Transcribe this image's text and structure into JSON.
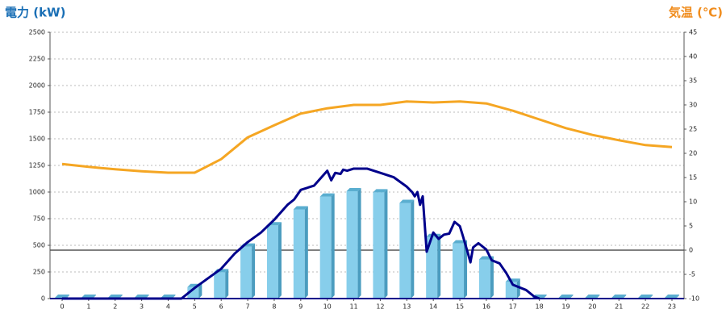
{
  "chart_data": {
    "type": "bar",
    "y_label": "電力 (kW)",
    "y2_label": "気温 (℃)",
    "categories": [
      "0",
      "1",
      "2",
      "3",
      "4",
      "5",
      "6",
      "7",
      "8",
      "9",
      "10",
      "11",
      "12",
      "13",
      "14",
      "15",
      "16",
      "17",
      "18",
      "19",
      "20",
      "21",
      "22",
      "23"
    ],
    "series": [
      {
        "type": "bar",
        "color": "#87ceeb",
        "values": [
          0,
          0,
          0,
          0,
          0,
          100,
          240,
          480,
          680,
          830,
          950,
          1000,
          990,
          890,
          570,
          510,
          360,
          150,
          0,
          0,
          0,
          0,
          0,
          0
        ]
      },
      {
        "type": "line",
        "color": "#00008b",
        "x": [
          0,
          4.5,
          5,
          5.5,
          6,
          6.5,
          7,
          7.5,
          8,
          8.5,
          8.75,
          9,
          9.5,
          9.75,
          10,
          10.15,
          10.3,
          10.5,
          10.6,
          10.75,
          11,
          11.5,
          12,
          12.5,
          13,
          13.2,
          13.3,
          13.4,
          13.5,
          13.6,
          13.75,
          14,
          14.2,
          14.4,
          14.6,
          14.8,
          15,
          15.1,
          15.3,
          15.4,
          15.5,
          15.7,
          16,
          16.2,
          16.5,
          16.75,
          17,
          17.5,
          17.8,
          18
        ],
        "values": [
          0,
          0,
          100,
          190,
          280,
          420,
          530,
          620,
          740,
          880,
          930,
          1020,
          1060,
          1130,
          1200,
          1110,
          1180,
          1170,
          1210,
          1200,
          1220,
          1220,
          1180,
          1140,
          1050,
          1000,
          960,
          1000,
          880,
          960,
          440,
          620,
          560,
          600,
          610,
          720,
          680,
          600,
          430,
          340,
          480,
          520,
          460,
          360,
          330,
          240,
          130,
          80,
          20,
          0
        ]
      },
      {
        "type": "line",
        "axis": "y2",
        "color": "#f5a623",
        "values": [
          17.8,
          17.2,
          16.7,
          16.3,
          16,
          16,
          18.8,
          23.3,
          25.8,
          28.2,
          29.3,
          30,
          30,
          30.7,
          30.5,
          30.7,
          30.3,
          28.8,
          27,
          25.2,
          23.8,
          22.7,
          21.7,
          21.3
        ]
      }
    ],
    "ylim": [
      0,
      2500
    ],
    "yticks": [
      0,
      250,
      500,
      750,
      1000,
      1250,
      1500,
      1750,
      2000,
      2250,
      2500
    ],
    "y2lim": [
      -10,
      45
    ],
    "y2ticks": [
      -10,
      -5,
      0,
      5,
      10,
      15,
      20,
      25,
      30,
      35,
      40,
      45
    ],
    "grid": true
  }
}
